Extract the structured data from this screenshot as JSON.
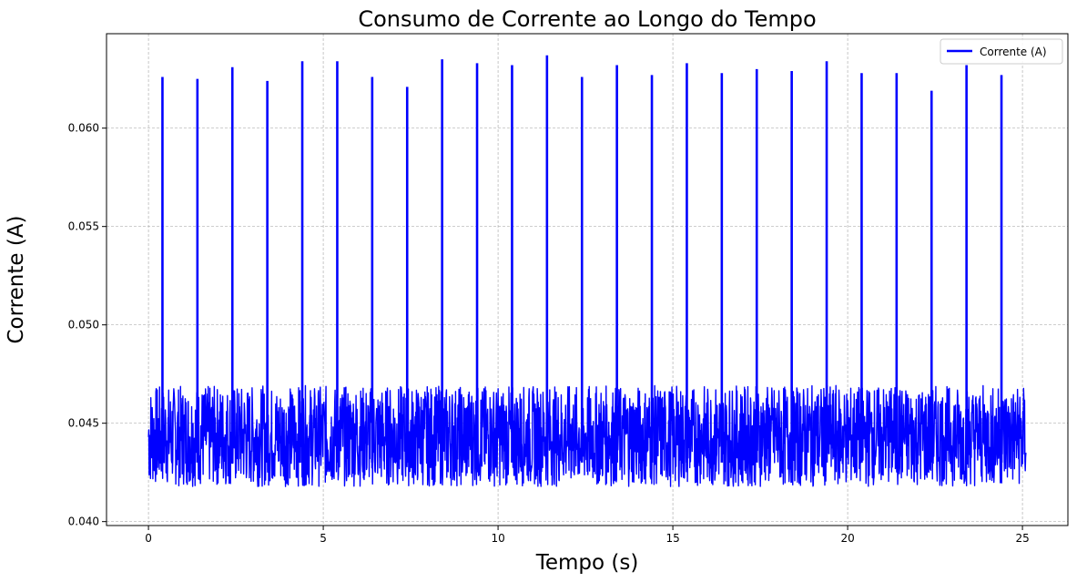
{
  "chart_data": {
    "type": "line",
    "title": "Consumo de Corrente ao Longo do Tempo",
    "xlabel": "Tempo (s)",
    "ylabel": "Corrente (A)",
    "xlim": [
      -1.2,
      26.3
    ],
    "ylim": [
      0.0398,
      0.0648
    ],
    "x_ticks": [
      0,
      5,
      10,
      15,
      20,
      25
    ],
    "x_tick_labels": [
      "0",
      "5",
      "10",
      "15",
      "20",
      "25"
    ],
    "y_ticks": [
      0.04,
      0.045,
      0.05,
      0.055,
      0.06
    ],
    "y_tick_labels": [
      "0.040",
      "0.045",
      "0.050",
      "0.055",
      "0.060"
    ],
    "grid": true,
    "legend_position": "top-right",
    "series": [
      {
        "name": "Corrente (A)",
        "color": "#0000ff",
        "x_range": [
          0,
          25.1
        ],
        "baseline_range": [
          0.0415,
          0.0472
        ],
        "spikes": [
          {
            "x": 0.4,
            "y": 0.0626
          },
          {
            "x": 1.4,
            "y": 0.0625
          },
          {
            "x": 2.4,
            "y": 0.0631
          },
          {
            "x": 3.4,
            "y": 0.0624
          },
          {
            "x": 4.4,
            "y": 0.0634
          },
          {
            "x": 5.4,
            "y": 0.0634
          },
          {
            "x": 6.4,
            "y": 0.0626
          },
          {
            "x": 7.4,
            "y": 0.0621
          },
          {
            "x": 8.4,
            "y": 0.0635
          },
          {
            "x": 9.4,
            "y": 0.0633
          },
          {
            "x": 10.4,
            "y": 0.0632
          },
          {
            "x": 11.4,
            "y": 0.0637
          },
          {
            "x": 12.4,
            "y": 0.0626
          },
          {
            "x": 13.4,
            "y": 0.0632
          },
          {
            "x": 14.4,
            "y": 0.0627
          },
          {
            "x": 15.4,
            "y": 0.0633
          },
          {
            "x": 16.4,
            "y": 0.0628
          },
          {
            "x": 17.4,
            "y": 0.063
          },
          {
            "x": 18.4,
            "y": 0.0629
          },
          {
            "x": 19.4,
            "y": 0.0634
          },
          {
            "x": 20.4,
            "y": 0.0628
          },
          {
            "x": 21.4,
            "y": 0.0628
          },
          {
            "x": 22.4,
            "y": 0.0619
          },
          {
            "x": 23.4,
            "y": 0.0632
          },
          {
            "x": 24.4,
            "y": 0.0627
          }
        ]
      }
    ]
  }
}
